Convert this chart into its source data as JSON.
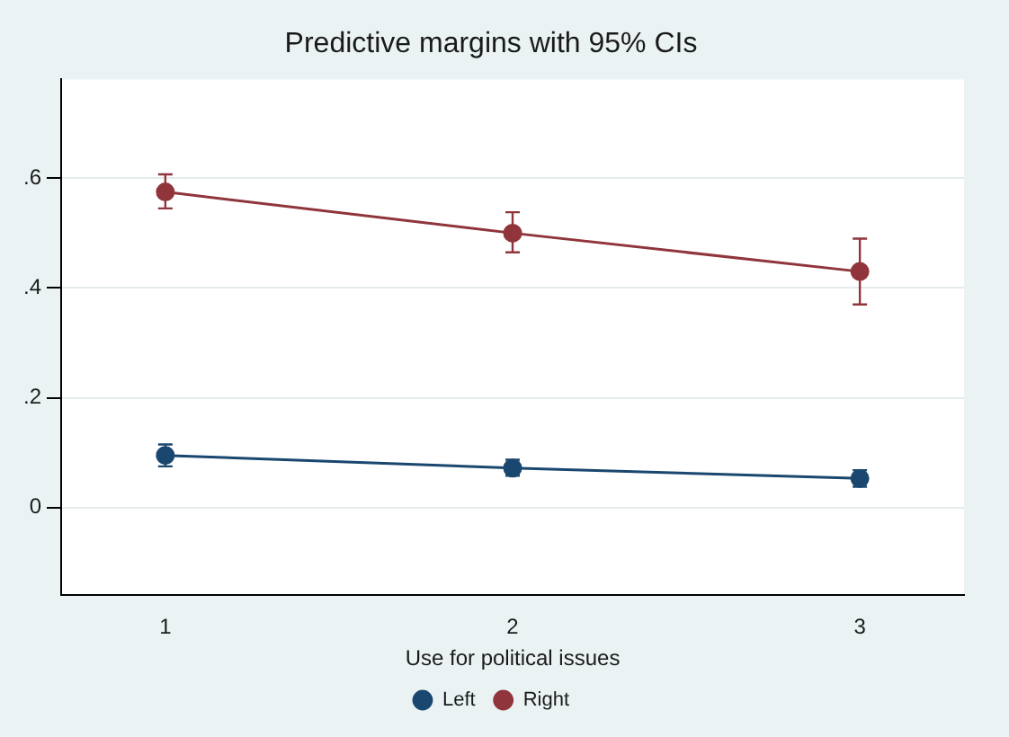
{
  "chart_data": {
    "type": "line",
    "title": "Predictive margins with 95% CIs",
    "xlabel": "Use for political issues",
    "x": [
      1,
      2,
      3
    ],
    "xlim": [
      0.7,
      3.3
    ],
    "xticks": [
      1,
      2,
      3
    ],
    "ylim": [
      -0.16,
      0.78
    ],
    "yticks": [
      {
        "value": 0,
        "label": "0"
      },
      {
        "value": 0.2,
        "label": ".2"
      },
      {
        "value": 0.4,
        "label": ".4"
      },
      {
        "value": 0.6,
        "label": ".6"
      }
    ],
    "series": [
      {
        "name": "Left",
        "color": "#1a476f",
        "values": [
          0.095,
          0.072,
          0.053
        ],
        "errors": [
          [
            0.075,
            0.115
          ],
          [
            0.058,
            0.087
          ],
          [
            0.038,
            0.068
          ]
        ]
      },
      {
        "name": "Right",
        "color": "#90353b",
        "values": [
          0.575,
          0.5,
          0.43
        ],
        "errors": [
          [
            0.545,
            0.607
          ],
          [
            0.465,
            0.538
          ],
          [
            0.37,
            0.49
          ]
        ]
      }
    ],
    "grid": "y",
    "legend": "bottom",
    "marker": "circle",
    "line_style": "solid"
  }
}
